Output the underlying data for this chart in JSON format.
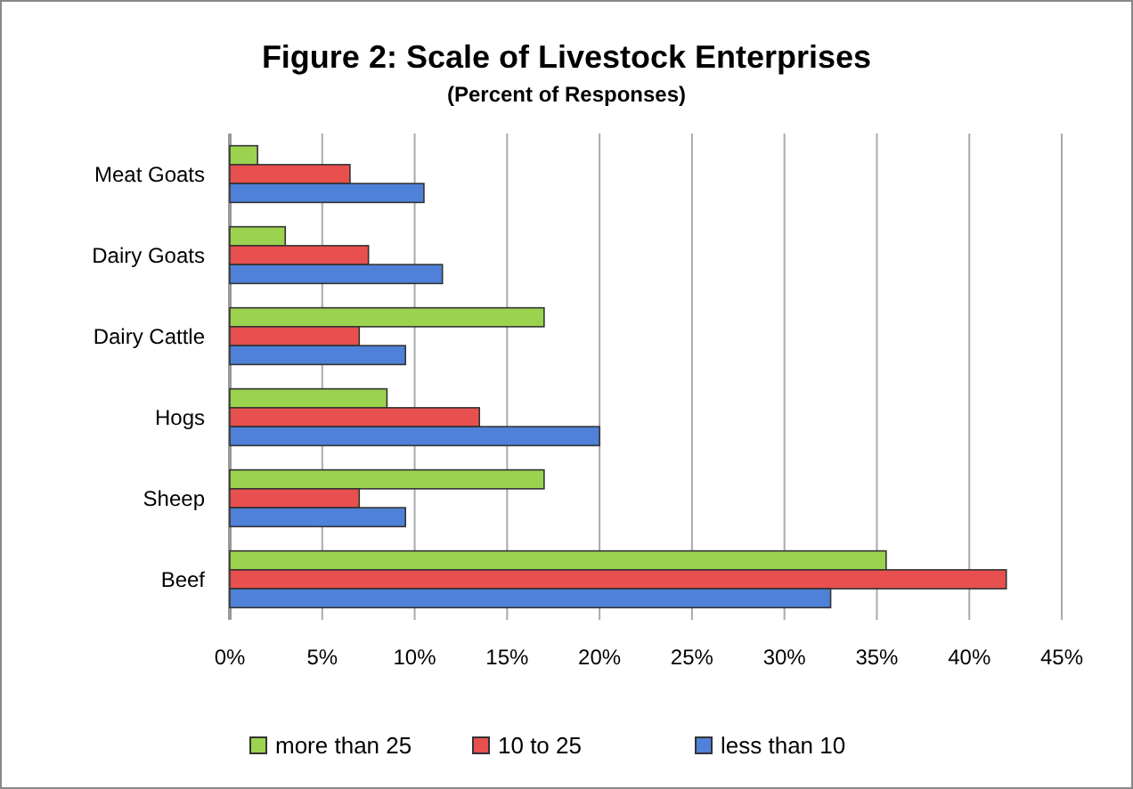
{
  "chart_data": {
    "type": "bar",
    "orientation": "horizontal",
    "title": "Figure 2: Scale of Livestock Enterprises",
    "subtitle": "(Percent of Responses)",
    "categories": [
      "Meat Goats",
      "Dairy Goats",
      "Dairy Cattle",
      "Hogs",
      "Sheep",
      "Beef"
    ],
    "series": [
      {
        "name": "more than 25",
        "color": "#9bd34f",
        "values": [
          1.5,
          3,
          17,
          8.5,
          17,
          35.5
        ]
      },
      {
        "name": "10 to 25",
        "color": "#e8504f",
        "values": [
          6.5,
          7.5,
          7,
          13.5,
          7,
          42
        ]
      },
      {
        "name": "less than 10",
        "color": "#4f81d9",
        "values": [
          10.5,
          11.5,
          9.5,
          20,
          9.5,
          32.5
        ]
      }
    ],
    "xlim": [
      0,
      45
    ],
    "xticks": [
      {
        "value": 0,
        "label": "0%"
      },
      {
        "value": 5,
        "label": "5%"
      },
      {
        "value": 10,
        "label": "10%"
      },
      {
        "value": 15,
        "label": "15%"
      },
      {
        "value": 20,
        "label": "20%"
      },
      {
        "value": 25,
        "label": "25%"
      },
      {
        "value": 30,
        "label": "30%"
      },
      {
        "value": 35,
        "label": "35%"
      },
      {
        "value": 40,
        "label": "40%"
      },
      {
        "value": 45,
        "label": "45%"
      }
    ],
    "grid": "x",
    "legend": "bottom"
  }
}
